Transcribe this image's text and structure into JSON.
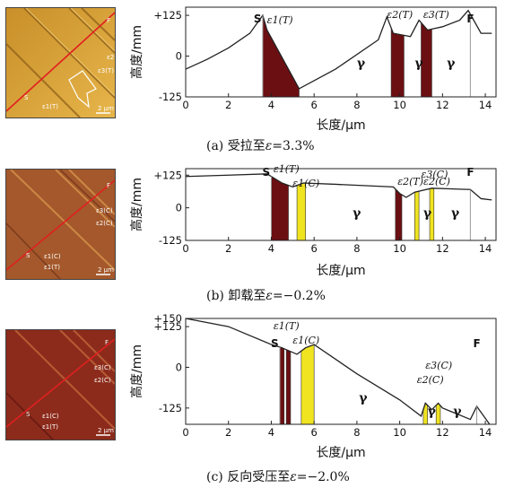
{
  "colors": {
    "dark": "#6b0f12",
    "yellow": "#f0e320",
    "line": "#222222",
    "afm_a": "#d7a23a",
    "afm_b": "#a2562a",
    "afm_c": "#8a2a1a",
    "red_line": "#e02020"
  },
  "panels": [
    {
      "id": "a",
      "caption_prefix": "(a)",
      "caption_text": "受拉至",
      "caption_eps": "ε",
      "caption_val": "=3.3%",
      "image_labels": {
        "F": "F",
        "S": "S",
        "e2": "ε2(T)",
        "e3": "ε3(T)",
        "e1": "ε1(T)",
        "scale": "2 μm"
      },
      "chart_data": {
        "type": "line",
        "xlabel": "长度/μm",
        "ylabel": "高度/mm",
        "xlim": [
          0,
          14.5
        ],
        "ylim": [
          -125,
          150
        ],
        "xticks": [
          "0",
          "2",
          "4",
          "6",
          "8",
          "10",
          "12",
          "14"
        ],
        "yticks": [
          "+125",
          "0",
          "-125"
        ],
        "profile": [
          [
            0,
            -40
          ],
          [
            1,
            -10
          ],
          [
            2,
            25
          ],
          [
            3,
            70
          ],
          [
            3.6,
            125
          ],
          [
            3.8,
            80
          ],
          [
            4.3,
            20
          ],
          [
            5.3,
            -100
          ],
          [
            7,
            -40
          ],
          [
            9,
            50
          ],
          [
            9.4,
            120
          ],
          [
            9.7,
            70
          ],
          [
            10.5,
            60
          ],
          [
            10.9,
            110
          ],
          [
            11.3,
            80
          ],
          [
            12,
            90
          ],
          [
            12.8,
            110
          ],
          [
            13.2,
            140
          ],
          [
            13.8,
            70
          ],
          [
            14.3,
            70
          ]
        ],
        "regions_dark": [
          [
            3.6,
            5.3
          ],
          [
            9.6,
            10.2
          ],
          [
            11.0,
            11.5
          ]
        ],
        "regions_yellow": [],
        "markers": {
          "S": 3.6,
          "F": 13.3
        },
        "eps_labels": [
          "ε1(T)",
          "ε2(T)",
          "ε3(T)"
        ],
        "phase_labels": [
          "γ",
          "γ",
          "γ"
        ]
      }
    },
    {
      "id": "b",
      "caption_prefix": "(b)",
      "caption_text": "卸载至",
      "caption_eps": "ε",
      "caption_val": "=−0.2%",
      "image_labels": {
        "F": "F",
        "S": "S",
        "e1c": "ε1(C)",
        "e1t": "ε1(T)",
        "e2": "ε2(C)",
        "e3": "ε3(C)",
        "scale": "2 μm"
      },
      "chart_data": {
        "type": "line",
        "xlabel": "长度/μm",
        "ylabel": "高度/mm",
        "xlim": [
          0,
          14.5
        ],
        "ylim": [
          -125,
          150
        ],
        "xticks": [
          "0",
          "2",
          "4",
          "6",
          "8",
          "10",
          "12",
          "14"
        ],
        "yticks": [
          "+125",
          "0",
          "-125"
        ],
        "profile": [
          [
            0,
            120
          ],
          [
            2,
            125
          ],
          [
            3.8,
            130
          ],
          [
            4.5,
            95
          ],
          [
            5.0,
            80
          ],
          [
            5.5,
            95
          ],
          [
            7,
            90
          ],
          [
            9.7,
            80
          ],
          [
            10.0,
            55
          ],
          [
            10.3,
            40
          ],
          [
            10.7,
            60
          ],
          [
            11.5,
            75
          ],
          [
            13.3,
            70
          ],
          [
            13.8,
            35
          ],
          [
            14.3,
            30
          ]
        ],
        "regions_dark": [
          [
            4.0,
            4.8
          ],
          [
            9.8,
            10.1
          ]
        ],
        "regions_yellow": [
          [
            5.2,
            5.6
          ],
          [
            10.7,
            10.9
          ],
          [
            11.4,
            11.6
          ]
        ],
        "markers": {
          "S": 4.0,
          "F": 13.3
        },
        "eps_labels": [
          "ε1(T)",
          "ε1(C)",
          "ε2(T)ε2(C)",
          "ε3(C)"
        ],
        "phase_labels": [
          "γ",
          "γ",
          "γ"
        ]
      }
    },
    {
      "id": "c",
      "caption_prefix": "(c)",
      "caption_text": "反向受压至",
      "caption_eps": "ε",
      "caption_val": "=−2.0%",
      "image_labels": {
        "F": "F",
        "S": "S",
        "e3": "ε3(C)",
        "e2": "ε2(C)",
        "e1c": "ε1(C)",
        "e1t": "ε1(T)",
        "scale": "2 μm"
      },
      "chart_data": {
        "type": "line",
        "xlabel": "长度/μm",
        "ylabel": "高度/mm",
        "xlim": [
          0,
          14.5
        ],
        "ylim": [
          -175,
          150
        ],
        "xticks": [
          "0",
          "2",
          "4",
          "6",
          "8",
          "10",
          "12",
          "14"
        ],
        "yticks": [
          "+150",
          "+125",
          "0",
          "-125"
        ],
        "profile": [
          [
            0,
            150
          ],
          [
            2,
            125
          ],
          [
            4,
            70
          ],
          [
            4.5,
            60
          ],
          [
            5.2,
            40
          ],
          [
            5.6,
            60
          ],
          [
            6,
            70
          ],
          [
            8,
            -20
          ],
          [
            10,
            -100
          ],
          [
            11,
            -150
          ],
          [
            11.2,
            -110
          ],
          [
            11.5,
            -130
          ],
          [
            11.8,
            -110
          ],
          [
            12,
            -125
          ],
          [
            13.3,
            -160
          ],
          [
            13.6,
            -120
          ],
          [
            14.2,
            -175
          ]
        ],
        "regions_dark": [
          [
            4.4,
            4.6
          ],
          [
            4.7,
            4.9
          ]
        ],
        "regions_yellow": [
          [
            5.4,
            6.0
          ],
          [
            11.1,
            11.3
          ],
          [
            11.7,
            11.9
          ]
        ],
        "markers": {
          "S": 4.4,
          "F": 13.6
        },
        "eps_labels": [
          "ε1(T)",
          "ε1(C)",
          "ε2(C)",
          "ε3(C)"
        ],
        "phase_labels": [
          "γ",
          "γ",
          "γ"
        ]
      }
    }
  ]
}
